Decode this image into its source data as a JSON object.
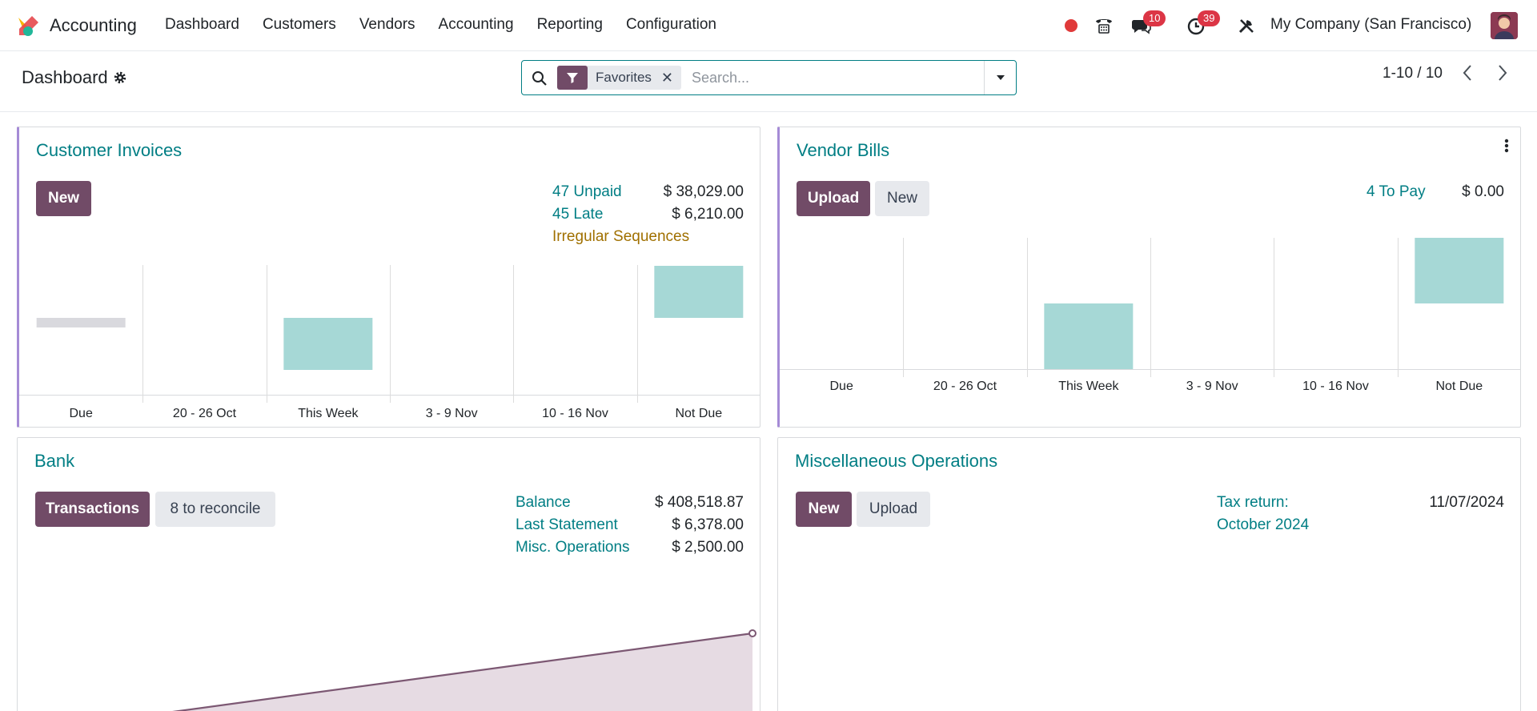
{
  "navbar": {
    "app_name": "Accounting",
    "menu": [
      "Dashboard",
      "Customers",
      "Vendors",
      "Accounting",
      "Reporting",
      "Configuration"
    ],
    "messages_count": "10",
    "activities_count": "39",
    "company": "My Company (San Francisco)"
  },
  "control_panel": {
    "breadcrumb": "Dashboard",
    "facet_label": "Favorites",
    "search_placeholder": "Search...",
    "pager": "1-10 / 10"
  },
  "customer_invoices": {
    "title": "Customer Invoices",
    "new_label": "New",
    "stats": [
      {
        "label": "47 Unpaid",
        "value": "$ 38,029.00"
      },
      {
        "label": "45 Late",
        "value": "$ 6,210.00"
      }
    ],
    "warning": "Irregular Sequences",
    "chart_data": {
      "type": "bar",
      "categories": [
        "Due",
        "20 - 26 Oct",
        "This Week",
        "3 - 9 Nov",
        "10 - 16 Nov",
        "Not Due"
      ],
      "values": [
        0,
        0,
        -4000,
        0,
        0,
        4000
      ],
      "placeholder": [
        true,
        false,
        false,
        false,
        false,
        false
      ],
      "ylim": [
        -10000,
        10000
      ]
    }
  },
  "vendor_bills": {
    "title": "Vendor Bills",
    "upload_label": "Upload",
    "new_label": "New",
    "stats": [
      {
        "label": "4 To Pay",
        "value": "$ 0.00"
      }
    ],
    "chart_data": {
      "type": "bar",
      "categories": [
        "Due",
        "20 - 26 Oct",
        "This Week",
        "3 - 9 Nov",
        "10 - 16 Nov",
        "Not Due"
      ],
      "values": [
        0,
        0,
        -5000,
        0,
        0,
        5000
      ],
      "ylim": [
        -5000,
        5000
      ]
    }
  },
  "bank": {
    "title": "Bank",
    "transactions_label": "Transactions",
    "reconcile_label": "8 to reconcile",
    "stats": [
      {
        "label": "Balance",
        "value": "$ 408,518.87"
      },
      {
        "label": "Last Statement",
        "value": "$ 6,378.00"
      },
      {
        "label": "Misc. Operations",
        "value": "$ 2,500.00"
      }
    ],
    "chart_data": {
      "type": "area",
      "x": [
        0,
        1
      ],
      "values": [
        0,
        408518.87
      ],
      "colors": {
        "line": "#7c5873",
        "fill": "#e6dbe3"
      }
    }
  },
  "misc_operations": {
    "title": "Miscellaneous Operations",
    "new_label": "New",
    "upload_label": "Upload",
    "tax_label_1": "Tax return:",
    "tax_label_2": "October 2024",
    "tax_date": "11/07/2024"
  },
  "colors": {
    "brand": "#714b67",
    "link": "#017e84",
    "bar": "#a6d8d6",
    "placeholder_bar": "#d9d9de",
    "accent_border": "#a58bd6"
  }
}
